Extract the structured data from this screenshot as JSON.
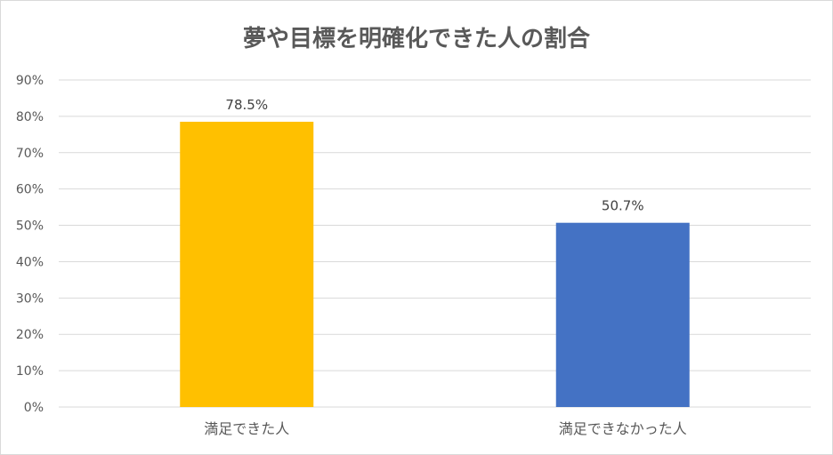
{
  "chart_data": {
    "type": "bar",
    "title": "夢や目標を明確化できた人の割合",
    "xlabel": "",
    "ylabel": "",
    "categories": [
      "満足できた人",
      "満足できなかった人"
    ],
    "values": [
      78.5,
      50.7
    ],
    "data_labels": [
      "78.5%",
      "50.7%"
    ],
    "colors": [
      "#FFC000",
      "#4472C4"
    ],
    "ylim": [
      0,
      90
    ],
    "yticks": [
      0,
      10,
      20,
      30,
      40,
      50,
      60,
      70,
      80,
      90
    ],
    "ytick_labels": [
      "0%",
      "10%",
      "20%",
      "30%",
      "40%",
      "50%",
      "60%",
      "70%",
      "80%",
      "90%"
    ],
    "grid": true,
    "legend": "none"
  }
}
